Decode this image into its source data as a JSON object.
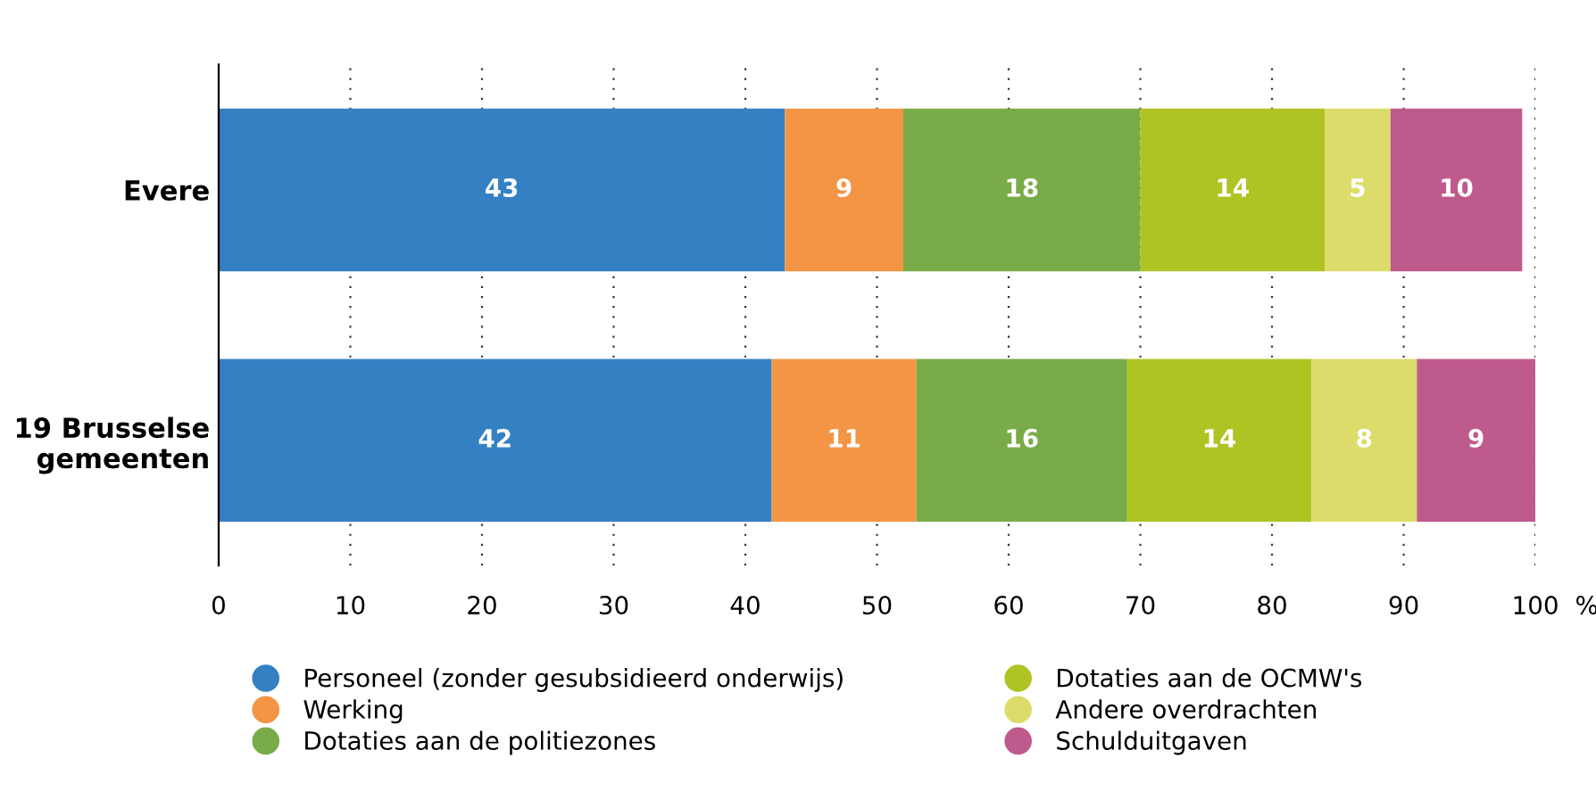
{
  "chart_data": {
    "type": "bar",
    "orientation": "horizontal",
    "stacked": true,
    "data_labels": true,
    "categories": [
      "Evere",
      "19 Brusselse\ngemeenten"
    ],
    "series": [
      {
        "name": "Personeel (zonder gesubsidieerd onderwijs)",
        "color": "#3480c3",
        "values": [
          43,
          42
        ]
      },
      {
        "name": "Werking",
        "color": "#f39545",
        "values": [
          9,
          11
        ]
      },
      {
        "name": "Dotaties aan de politiezones",
        "color": "#79ac48",
        "values": [
          18,
          16
        ]
      },
      {
        "name": "Dotaties aan de OCMW's",
        "color": "#afc423",
        "values": [
          14,
          14
        ]
      },
      {
        "name": "Andere overdrachten",
        "color": "#dcdc6a",
        "values": [
          5,
          8
        ]
      },
      {
        "name": "Schulduitgaven",
        "color": "#bf5a8c",
        "values": [
          10,
          9
        ]
      }
    ],
    "xlim": [
      0,
      100
    ],
    "xticks": [
      0,
      10,
      20,
      30,
      40,
      50,
      60,
      70,
      80,
      90,
      100
    ],
    "xlabel": "%",
    "grid": "x",
    "legend": "bottom"
  }
}
